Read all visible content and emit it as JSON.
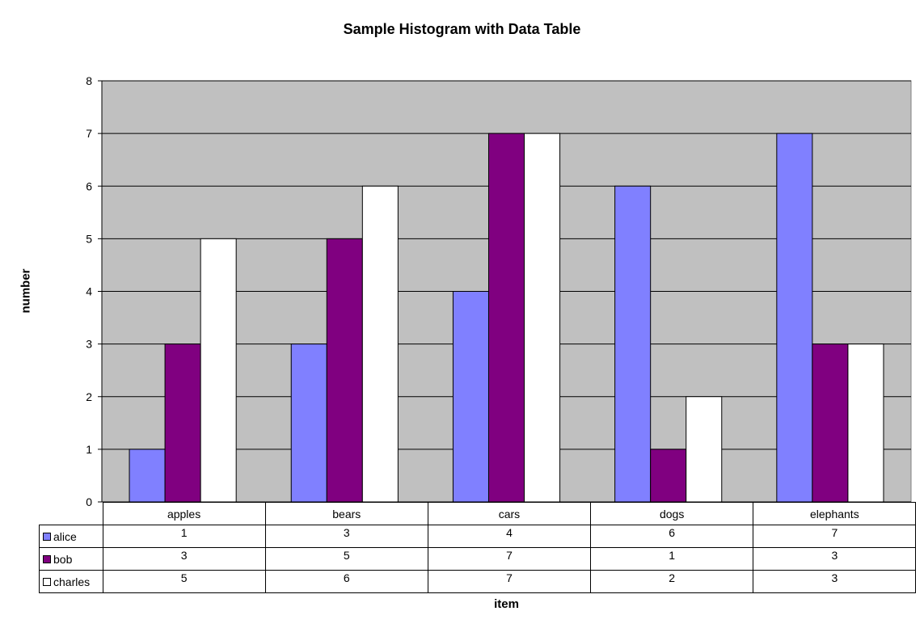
{
  "chart_data": {
    "type": "bar",
    "title": "Sample Histogram with Data Table",
    "xlabel": "item",
    "ylabel": "number",
    "categories": [
      "apples",
      "bears",
      "cars",
      "dogs",
      "elephants"
    ],
    "series": [
      {
        "name": "alice",
        "values": [
          1,
          3,
          4,
          6,
          7
        ],
        "color": "#8080ff"
      },
      {
        "name": "bob",
        "values": [
          3,
          5,
          7,
          1,
          3
        ],
        "color": "#800080"
      },
      {
        "name": "charles",
        "values": [
          5,
          6,
          7,
          2,
          3
        ],
        "color": "#ffffff"
      }
    ],
    "ylim": [
      0,
      8
    ],
    "yticks": [
      0,
      1,
      2,
      3,
      4,
      5,
      6,
      7,
      8
    ],
    "grid": true,
    "plot_background": "#c0c0c0",
    "legend": "data-table"
  }
}
